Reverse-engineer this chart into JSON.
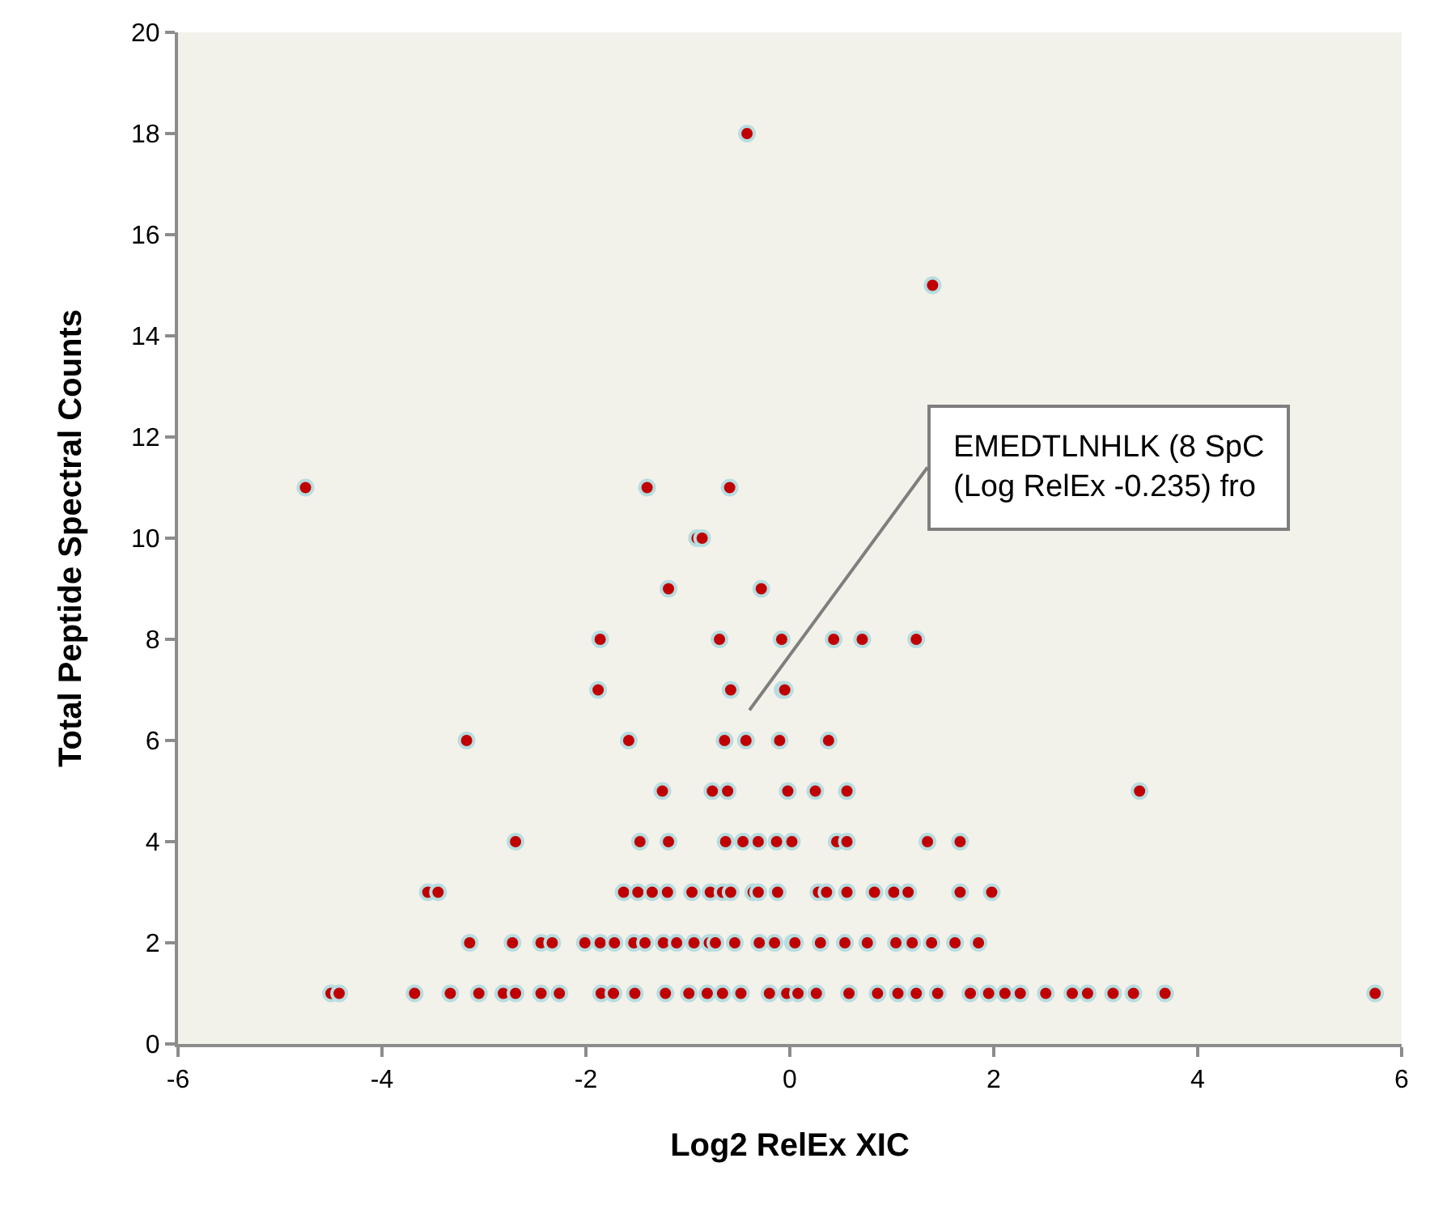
{
  "chart_data": {
    "type": "scatter",
    "xlabel": "Log2 RelEx XIC",
    "ylabel": "Total Peptide Spectral Counts",
    "xlim": [
      -6,
      6
    ],
    "xticks": [
      -6,
      -4,
      -2,
      0,
      2,
      4,
      6
    ],
    "ylim": [
      0,
      20
    ],
    "yticks": [
      0,
      2,
      4,
      6,
      8,
      10,
      12,
      14,
      16,
      18,
      20
    ],
    "grid": false,
    "marker": "circle",
    "annotations": [
      "EMEDTLNHLK (8 SpC\n(Log RelEx -0.235) fro"
    ],
    "series": [
      {
        "color": "#c00000",
        "x": [
          -0.42,
          1.4,
          -4.75,
          -1.4,
          -0.59,
          -0.91,
          -0.86,
          -1.19,
          -0.28,
          -1.86,
          -0.69,
          -0.08,
          0.43,
          0.71,
          1.24,
          -1.88,
          -0.58,
          -0.07,
          -0.05,
          -3.17,
          -1.58,
          -0.64,
          -0.43,
          -0.1,
          0.38,
          -1.25,
          -0.76,
          -0.61,
          -0.02,
          0.25,
          0.56,
          3.43,
          -2.69,
          -1.47,
          -1.19,
          -0.63,
          -0.46,
          -0.31,
          -0.13,
          0.02,
          0.46,
          0.56,
          1.35,
          1.67,
          -3.55,
          -3.45,
          -1.63,
          -1.49,
          -1.35,
          -1.2,
          -0.96,
          -0.78,
          -0.66,
          -0.58,
          -0.36,
          -0.31,
          -0.12,
          0.28,
          0.36,
          0.56,
          0.83,
          1.02,
          1.16,
          1.67,
          1.98,
          -3.14,
          -2.72,
          -2.44,
          -2.33,
          -2.01,
          -1.86,
          -1.72,
          -1.53,
          -1.42,
          -1.24,
          -1.11,
          -0.94,
          -0.79,
          -0.73,
          -0.54,
          -0.3,
          -0.15,
          0.03,
          0.05,
          0.3,
          0.54,
          0.76,
          1.04,
          1.2,
          1.39,
          1.62,
          1.85,
          -4.5,
          -4.42,
          -3.68,
          -3.33,
          -3.05,
          -2.81,
          -2.69,
          -2.44,
          -2.26,
          -1.85,
          -1.73,
          -1.52,
          -1.22,
          -0.99,
          -0.81,
          -0.66,
          -0.48,
          -0.2,
          -0.03,
          0.08,
          0.26,
          0.58,
          0.86,
          1.06,
          1.24,
          1.45,
          1.77,
          1.95,
          2.11,
          2.26,
          2.51,
          2.77,
          2.92,
          3.17,
          3.37,
          3.68,
          5.74
        ],
        "values": [
          18,
          15,
          11,
          11,
          11,
          10,
          10,
          9,
          9,
          8,
          8,
          8,
          8,
          8,
          8,
          7,
          7,
          7,
          7,
          6,
          6,
          6,
          6,
          6,
          6,
          5,
          5,
          5,
          5,
          5,
          5,
          5,
          4,
          4,
          4,
          4,
          4,
          4,
          4,
          4,
          4,
          4,
          4,
          4,
          3,
          3,
          3,
          3,
          3,
          3,
          3,
          3,
          3,
          3,
          3,
          3,
          3,
          3,
          3,
          3,
          3,
          3,
          3,
          3,
          3,
          2,
          2,
          2,
          2,
          2,
          2,
          2,
          2,
          2,
          2,
          2,
          2,
          2,
          2,
          2,
          2,
          2,
          2,
          2,
          2,
          2,
          2,
          2,
          2,
          2,
          2,
          2,
          1,
          1,
          1,
          1,
          1,
          1,
          1,
          1,
          1,
          1,
          1,
          1,
          1,
          1,
          1,
          1,
          1,
          1,
          1,
          1,
          1,
          1,
          1,
          1,
          1,
          1,
          1,
          1,
          1,
          1,
          1,
          1,
          1,
          1,
          1,
          1,
          1
        ]
      }
    ]
  }
}
